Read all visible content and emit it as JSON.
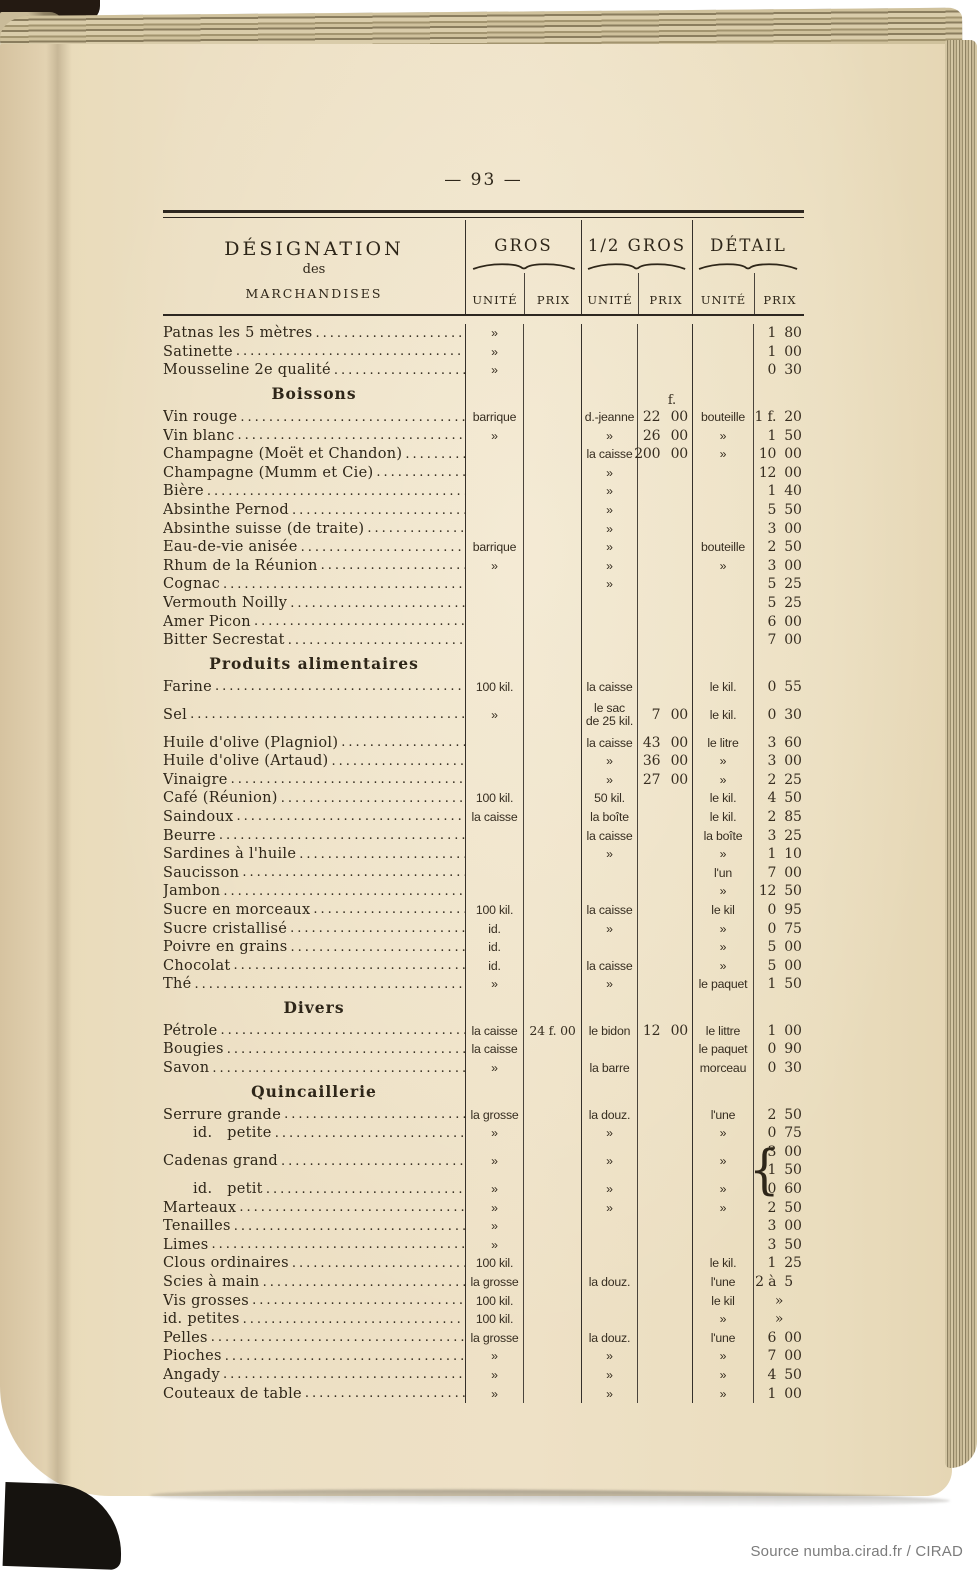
{
  "page_number": "— 93 —",
  "source_credit": "Source numba.cirad.fr / CIRAD",
  "colors": {
    "page_paper": "#ecdfc3",
    "ink": "#2e2619",
    "cover": "#16130f",
    "source_text": "#7c7c7c"
  },
  "table": {
    "header": {
      "designation_line1": "DÉSIGNATION",
      "designation_line2": "des",
      "designation_line3": "MARCHANDISES",
      "groups": [
        {
          "label": "GROS"
        },
        {
          "label": "1/2 GROS"
        },
        {
          "label": "DÉTAIL"
        }
      ],
      "unit_label": "UNITÉ",
      "price_label": "PRIX"
    },
    "currency_note": "f.",
    "rows": [
      {
        "type": "item",
        "designation": "Patnas les 5 mètres",
        "gros_u": "»",
        "det_f": "1",
        "det_c": "80"
      },
      {
        "type": "item",
        "designation": "Satinette",
        "gros_u": "»",
        "det_f": "1",
        "det_c": "00"
      },
      {
        "type": "item",
        "designation": "Mousseline 2e qualité",
        "gros_u": "»",
        "det_f": "0",
        "det_c": "30"
      },
      {
        "type": "section",
        "label": "Boissons",
        "demi_p": "f."
      },
      {
        "type": "item",
        "designation": "Vin rouge",
        "gros_u": "barrique",
        "demi_u": "d.-jeanne",
        "demi_p": "22 00",
        "det_u": "bouteille",
        "det_f": "1 f.",
        "det_c": "20"
      },
      {
        "type": "item",
        "designation": "Vin blanc",
        "gros_u": "»",
        "demi_u": "»",
        "demi_p": "26 00",
        "det_u": "»",
        "det_f": "1",
        "det_c": "50"
      },
      {
        "type": "item",
        "designation": "Champagne (Moët et Chandon)",
        "demi_u": "la caisse",
        "demi_p": "200 00",
        "det_u": "»",
        "det_f": "10",
        "det_c": "00"
      },
      {
        "type": "item",
        "designation": "Champagne (Mumm et Cie)",
        "demi_u": "»",
        "det_f": "12",
        "det_c": "00"
      },
      {
        "type": "item",
        "designation": "Bière",
        "demi_u": "»",
        "det_f": "1",
        "det_c": "40"
      },
      {
        "type": "item",
        "designation": "Absinthe Pernod",
        "demi_u": "»",
        "det_f": "5",
        "det_c": "50"
      },
      {
        "type": "item",
        "designation": "Absinthe suisse (de traite)",
        "demi_u": "»",
        "det_f": "3",
        "det_c": "00"
      },
      {
        "type": "item",
        "designation": "Eau-de-vie anisée",
        "gros_u": "barrique",
        "demi_u": "»",
        "det_u": "bouteille",
        "det_f": "2",
        "det_c": "50"
      },
      {
        "type": "item",
        "designation": "Rhum de la Réunion",
        "gros_u": "»",
        "demi_u": "»",
        "det_u": "»",
        "det_f": "3",
        "det_c": "00"
      },
      {
        "type": "item",
        "designation": "Cognac",
        "demi_u": "»",
        "det_f": "5",
        "det_c": "25"
      },
      {
        "type": "item",
        "designation": "Vermouth Noilly",
        "det_f": "5",
        "det_c": "25"
      },
      {
        "type": "item",
        "designation": "Amer Picon",
        "det_f": "6",
        "det_c": "00"
      },
      {
        "type": "item",
        "designation": "Bitter Secrestat",
        "det_f": "7",
        "det_c": "00"
      },
      {
        "type": "section",
        "label": "Produits alimentaires"
      },
      {
        "type": "item",
        "designation": "Farine",
        "gros_u": "100 kil.",
        "demi_u": "la caisse",
        "det_u": "le kil.",
        "det_f": "0",
        "det_c": "55"
      },
      {
        "type": "item",
        "designation": "Sel",
        "gros_u": "»",
        "demi_u": [
          "le sac",
          "de 25 kil."
        ],
        "demi_p": "7 00",
        "det_u": "le kil.",
        "det_f": "0",
        "det_c": "30",
        "h": 2
      },
      {
        "type": "item",
        "designation": "Huile d'olive (Plagniol)",
        "demi_u": "la caisse",
        "demi_p": "43 00",
        "det_u": "le litre",
        "det_f": "3",
        "det_c": "60"
      },
      {
        "type": "item",
        "designation": "Huile d'olive (Artaud)",
        "demi_u": "»",
        "demi_p": "36 00",
        "det_u": "»",
        "det_f": "3",
        "det_c": "00"
      },
      {
        "type": "item",
        "designation": "Vinaigre",
        "demi_u": "»",
        "demi_p": "27 00",
        "det_u": "»",
        "det_f": "2",
        "det_c": "25"
      },
      {
        "type": "item",
        "designation": "Café (Réunion)",
        "gros_u": "100 kil.",
        "demi_u": "50 kil.",
        "det_u": "le kil.",
        "det_f": "4",
        "det_c": "50"
      },
      {
        "type": "item",
        "designation": "Saindoux",
        "gros_u": "la caisse",
        "demi_u": "la boîte",
        "det_u": "le kil.",
        "det_f": "2",
        "det_c": "85"
      },
      {
        "type": "item",
        "designation": "Beurre",
        "demi_u": "la caisse",
        "det_u": "la boîte",
        "det_f": "3",
        "det_c": "25"
      },
      {
        "type": "item",
        "designation": "Sardines à l'huile",
        "demi_u": "»",
        "det_u": "»",
        "det_f": "1",
        "det_c": "10"
      },
      {
        "type": "item",
        "designation": "Saucisson",
        "det_u": "l'un",
        "det_f": "7",
        "det_c": "00"
      },
      {
        "type": "item",
        "designation": "Jambon",
        "det_u": "»",
        "det_f": "12",
        "det_c": "50"
      },
      {
        "type": "item",
        "designation": "Sucre en morceaux",
        "gros_u": "100 kil.",
        "demi_u": "la caisse",
        "det_u": "le kil",
        "det_f": "0",
        "det_c": "95"
      },
      {
        "type": "item",
        "designation": "Sucre cristallisé",
        "gros_u": "id.",
        "demi_u": "»",
        "det_u": "»",
        "det_f": "0",
        "det_c": "75"
      },
      {
        "type": "item",
        "designation": "Poivre en grains",
        "gros_u": "id.",
        "det_u": "»",
        "det_f": "5",
        "det_c": "00"
      },
      {
        "type": "item",
        "designation": "Chocolat",
        "gros_u": "id.",
        "demi_u": "la caisse",
        "det_u": "»",
        "det_f": "5",
        "det_c": "00"
      },
      {
        "type": "item",
        "designation": "Thé",
        "gros_u": "»",
        "demi_u": "»",
        "det_u": "le paquet",
        "det_f": "1",
        "det_c": "50"
      },
      {
        "type": "section",
        "label": "Divers"
      },
      {
        "type": "item",
        "designation": "Pétrole",
        "gros_u": "la caisse",
        "gros_p": "24 f. 00",
        "demi_u": "le bidon",
        "demi_p": "12 00",
        "det_u": "le littre",
        "det_f": "1",
        "det_c": "00"
      },
      {
        "type": "item",
        "designation": "Bougies",
        "gros_u": "la caisse",
        "det_u": "le paquet",
        "det_f": "0",
        "det_c": "90"
      },
      {
        "type": "item",
        "designation": "Savon",
        "gros_u": "»",
        "demi_u": "la barre",
        "det_u": "morceau",
        "det_f": "0",
        "det_c": "30"
      },
      {
        "type": "section",
        "label": "Quincaillerie"
      },
      {
        "type": "item",
        "designation": "Serrure grande",
        "gros_u": "la grosse",
        "demi_u": "la douz.",
        "det_u": "l'une",
        "det_f": "2",
        "det_c": "50"
      },
      {
        "type": "item",
        "designation": "id.   petite",
        "indent": true,
        "gros_u": "»",
        "demi_u": "»",
        "det_u": "»",
        "det_f": "0",
        "det_c": "75"
      },
      {
        "type": "item",
        "designation": "Cadenas grand",
        "gros_u": "»",
        "demi_u": "»",
        "det_u": "»",
        "det_prices": [
          [
            "3",
            "00"
          ],
          [
            "1",
            "50"
          ]
        ],
        "brace": true,
        "h": 2
      },
      {
        "type": "item",
        "designation": "id.   petit",
        "indent": true,
        "gros_u": "»",
        "demi_u": "»",
        "det_u": "»",
        "det_f": "0",
        "det_c": "60"
      },
      {
        "type": "item",
        "designation": "Marteaux",
        "gros_u": "»",
        "demi_u": "»",
        "det_u": "»",
        "det_f": "2",
        "det_c": "50"
      },
      {
        "type": "item",
        "designation": "Tenailles",
        "gros_u": "»",
        "det_f": "3",
        "det_c": "00"
      },
      {
        "type": "item",
        "designation": "Limes",
        "gros_u": "»",
        "det_f": "3",
        "det_c": "50"
      },
      {
        "type": "item",
        "designation": "Clous ordinaires",
        "gros_u": "100 kil.",
        "det_u": "le kil.",
        "det_f": "1",
        "det_c": "25"
      },
      {
        "type": "item",
        "designation": "Scies à main",
        "gros_u": "la grosse",
        "demi_u": "la douz.",
        "det_u": "l'une",
        "det_f": "2 à",
        "det_c": "5"
      },
      {
        "type": "item",
        "designation": "Vis grosses",
        "gros_u": "100 kil.",
        "det_u": "le kil",
        "det_single": "»"
      },
      {
        "type": "item",
        "designation": "id. petites",
        "gros_u": "100 kil.",
        "det_u": "»",
        "det_single": "»"
      },
      {
        "type": "item",
        "designation": "Pelles",
        "gros_u": "la grosse",
        "demi_u": "la douz.",
        "det_u": "l'une",
        "det_f": "6",
        "det_c": "00"
      },
      {
        "type": "item",
        "designation": "Pioches",
        "gros_u": "»",
        "demi_u": "»",
        "det_u": "»",
        "det_f": "7",
        "det_c": "00"
      },
      {
        "type": "item",
        "designation": "Angady",
        "gros_u": "»",
        "demi_u": "»",
        "det_u": "»",
        "det_f": "4",
        "det_c": "50"
      },
      {
        "type": "item",
        "designation": "Couteaux de table",
        "gros_u": "»",
        "demi_u": "»",
        "det_u": "»",
        "det_f": "1",
        "det_c": "00"
      }
    ]
  }
}
